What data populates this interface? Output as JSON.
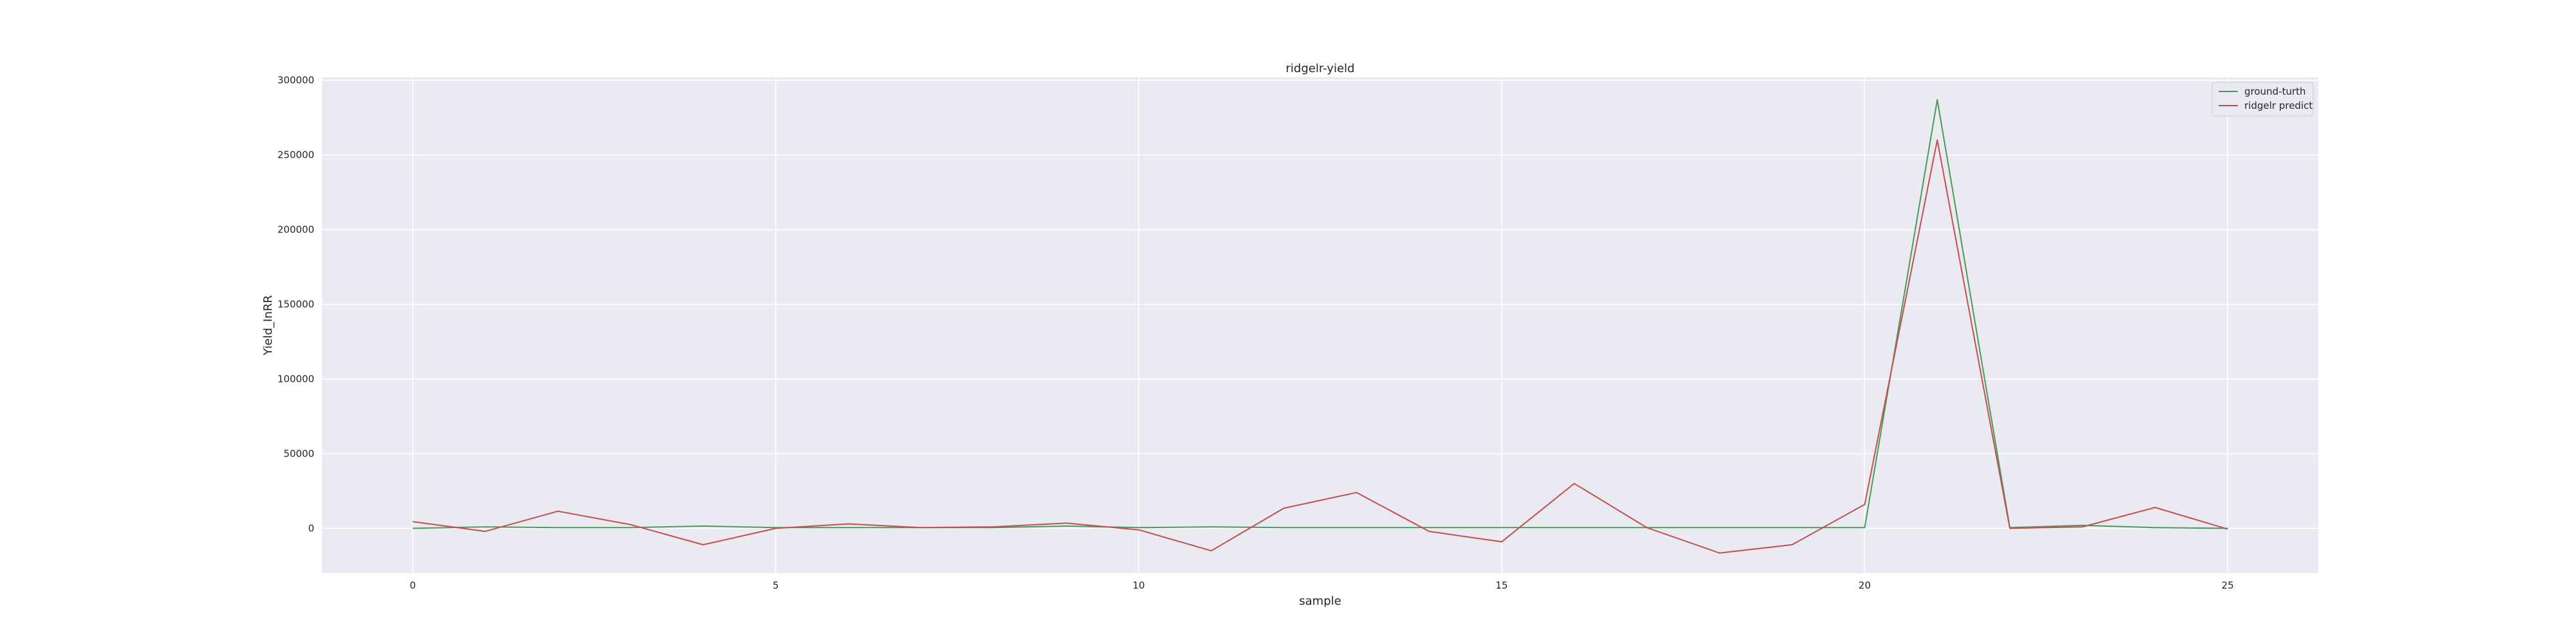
{
  "chart_data": {
    "type": "line",
    "title": "ridgelr-yield",
    "xlabel": "sample",
    "ylabel": "Yield_InRR",
    "xlim": [
      -1.25,
      26.25
    ],
    "ylim": [
      -30000,
      302000
    ],
    "xticks": [
      0,
      5,
      10,
      15,
      20,
      25
    ],
    "yticks": [
      0,
      50000,
      100000,
      150000,
      200000,
      250000,
      300000
    ],
    "grid": true,
    "legend_position": "top-right",
    "x": [
      0,
      1,
      2,
      3,
      4,
      5,
      6,
      7,
      8,
      9,
      10,
      11,
      12,
      13,
      14,
      15,
      16,
      17,
      18,
      19,
      20,
      21,
      22,
      23,
      24,
      25
    ],
    "series": [
      {
        "name": "ground-turth",
        "color": "#4c9a5a",
        "values": [
          0,
          1000,
          500,
          500,
          1500,
          500,
          500,
          500,
          500,
          1500,
          500,
          1000,
          500,
          500,
          500,
          500,
          500,
          500,
          500,
          500,
          500,
          287000,
          500,
          2000,
          500,
          0
        ]
      },
      {
        "name": "ridgelr predict",
        "color": "#c44e52",
        "values": [
          4500,
          -2000,
          11500,
          2500,
          -11000,
          0,
          3000,
          500,
          1000,
          3500,
          -1000,
          -15000,
          13500,
          24000,
          -2000,
          -9000,
          30000,
          500,
          -16500,
          -11000,
          16000,
          260000,
          0,
          1000,
          14000,
          -500
        ]
      }
    ]
  }
}
